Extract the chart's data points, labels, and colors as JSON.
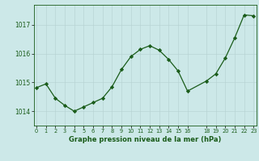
{
  "x": [
    0,
    1,
    2,
    3,
    4,
    5,
    6,
    7,
    8,
    9,
    10,
    11,
    12,
    13,
    14,
    15,
    16,
    18,
    19,
    20,
    21,
    22,
    23
  ],
  "y": [
    1014.82,
    1014.95,
    1014.45,
    1014.2,
    1014.0,
    1014.15,
    1014.3,
    1014.45,
    1014.85,
    1015.45,
    1015.9,
    1016.15,
    1016.28,
    1016.12,
    1015.8,
    1015.4,
    1014.7,
    1015.05,
    1015.3,
    1015.85,
    1016.55,
    1017.35,
    1017.32
  ],
  "x_tick_positions": [
    0,
    1,
    2,
    3,
    4,
    5,
    6,
    7,
    8,
    9,
    10,
    11,
    12,
    13,
    14,
    15,
    16,
    18,
    19,
    20,
    21,
    22,
    23
  ],
  "x_tick_labels": [
    "0",
    "1",
    "2",
    "3",
    "4",
    "5",
    "6",
    "7",
    "8",
    "9",
    "10",
    "11",
    "12",
    "13",
    "14",
    "15",
    "16",
    "18",
    "19",
    "20",
    "21",
    "22",
    "23"
  ],
  "xlabel": "Graphe pression niveau de la mer (hPa)",
  "ylim": [
    1013.5,
    1017.7
  ],
  "yticks": [
    1014,
    1015,
    1016,
    1017
  ],
  "xlim": [
    -0.3,
    23.3
  ],
  "bg_color": "#cce8e8",
  "line_color": "#1a5c1a",
  "grid_color": "#b8d4d4",
  "text_color": "#1a5c1a"
}
